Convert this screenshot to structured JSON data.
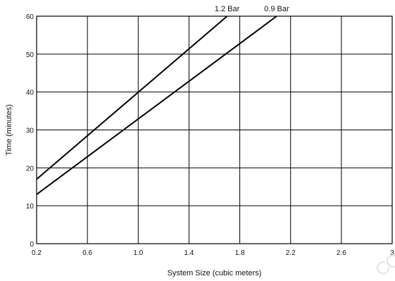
{
  "chart_data": {
    "type": "line",
    "title": "",
    "xlabel": "System Size (cubic meters)",
    "ylabel": "Time (minutes)",
    "xlim": [
      0.2,
      3.0
    ],
    "ylim": [
      0,
      60
    ],
    "xticks": [
      0.2,
      0.6,
      1.0,
      1.4,
      1.8,
      2.2,
      2.6,
      3.0
    ],
    "xtick_labels": [
      "0.2",
      "0.6",
      "1.0",
      "1.4",
      "1.8",
      "2.2",
      "2.6",
      "3"
    ],
    "yticks": [
      0,
      10,
      20,
      30,
      40,
      50,
      60
    ],
    "ytick_labels": [
      "0",
      "10",
      "20",
      "30",
      "40",
      "50",
      "60"
    ],
    "grid": true,
    "series": [
      {
        "name": "1.2 Bar",
        "x": [
          0.2,
          1.7
        ],
        "y": [
          17,
          60
        ]
      },
      {
        "name": "0.9 Bar",
        "x": [
          0.2,
          2.09
        ],
        "y": [
          13,
          60
        ]
      }
    ]
  },
  "watermark": "CO"
}
